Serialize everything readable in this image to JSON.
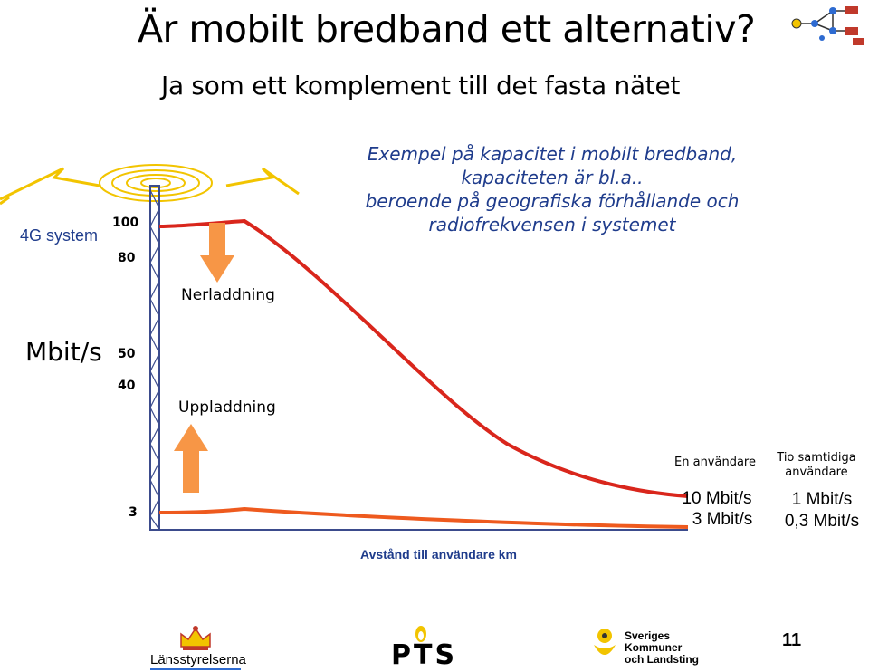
{
  "title": "Är mobilt bredband ett alternativ?",
  "subtitle": "Ja som ett komplement till det fasta nätet",
  "example_text": {
    "line1": "Exempel på kapacitet i mobilt bredband,",
    "line2": "kapaciteten är bl.a..",
    "line3": "beroende på geografiska förhållande och",
    "line4": "radiofrekvensen i systemet"
  },
  "system_label": "4G system",
  "y_unit": "Mbit/s",
  "y_ticks": {
    "t100": "100",
    "t80": "80",
    "t50": "50",
    "t40": "40",
    "t3": "3"
  },
  "arrows": {
    "download": "Nerladdning",
    "upload": "Uppladdning"
  },
  "x_label": "Avstånd till användare km",
  "columns": {
    "single": {
      "header": "En användare",
      "download": "10 Mbit/s",
      "upload": "3 Mbit/s"
    },
    "ten": {
      "header_line1": "Tio samtidiga",
      "header_line2": "användare",
      "download": "1 Mbit/s",
      "upload": "0,3 Mbit/s"
    }
  },
  "logos": {
    "lansstyrelserna": "Länsstyrelserna",
    "pts": "PTS",
    "skl_line1": "Sveriges",
    "skl_line2": "Kommuner",
    "skl_line3": "och Landsting"
  },
  "page_number": "11",
  "colors": {
    "download_curve": "#d9261c",
    "upload_curve": "#ee5a1e",
    "arrow": "#f79646",
    "mast": "#3b4b8c",
    "blue_text": "#1f3c8c"
  }
}
